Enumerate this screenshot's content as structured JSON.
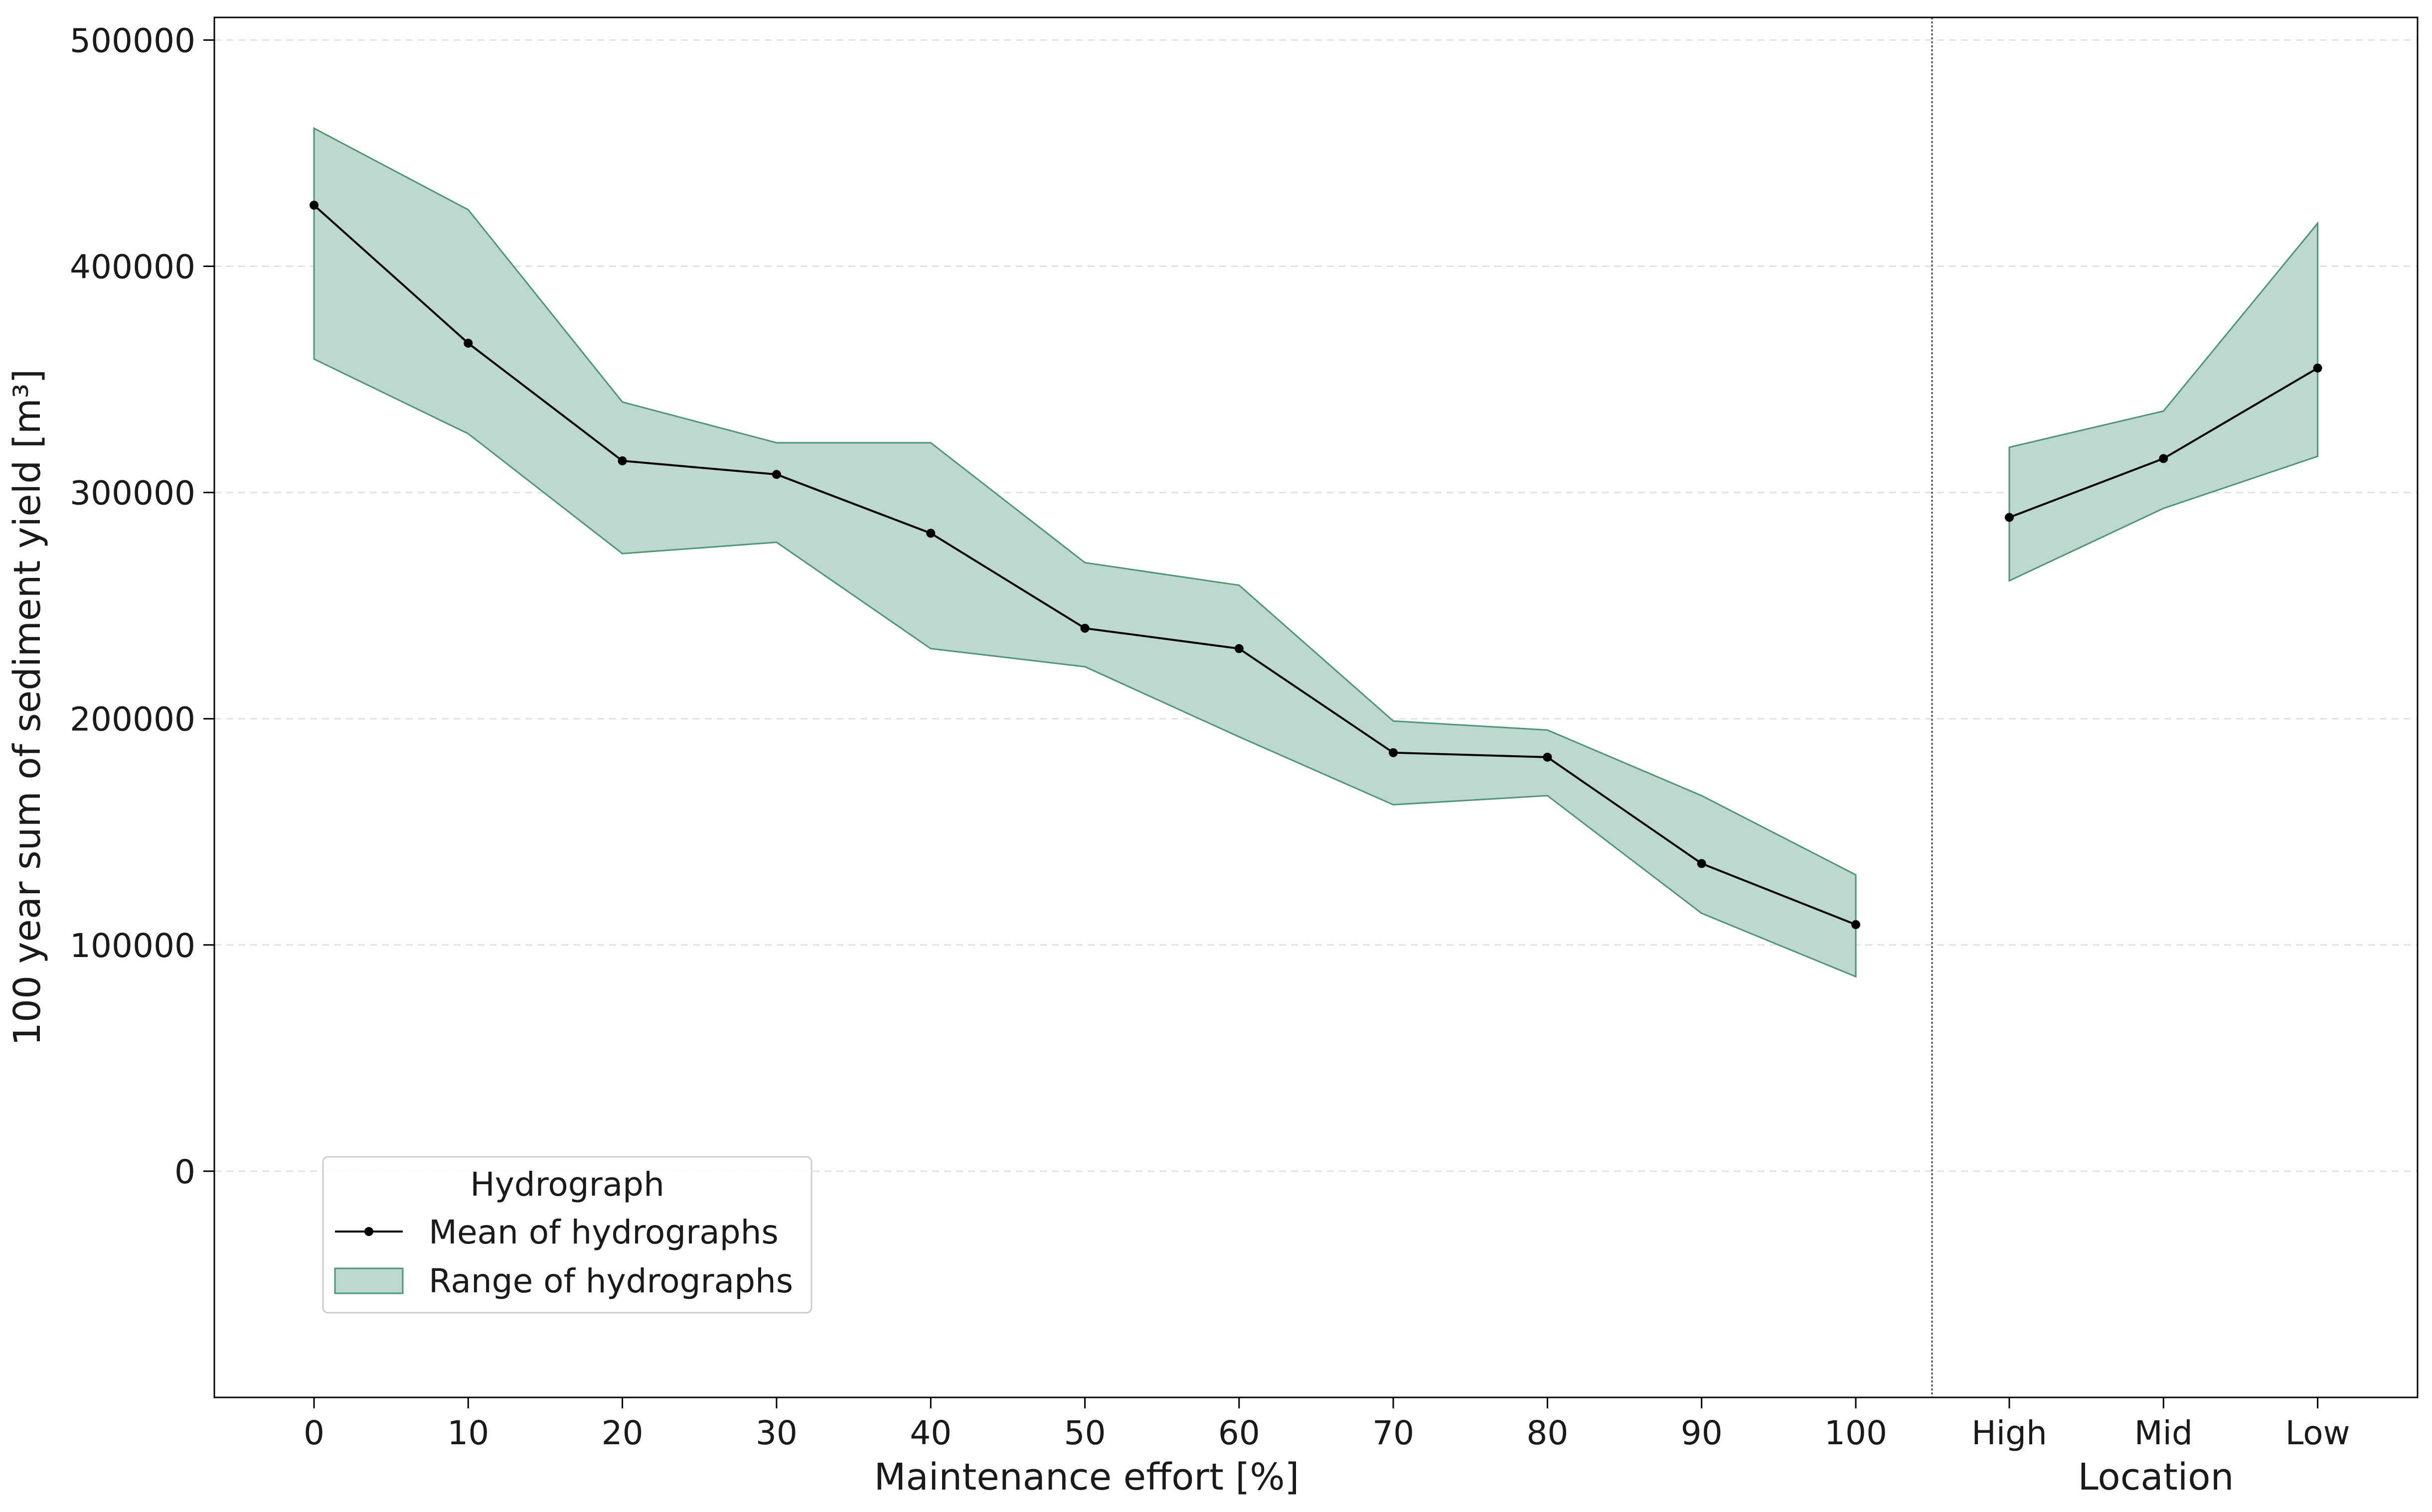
{
  "chart_data": {
    "type": "line",
    "ylabel": "100 year sum of sediment yield [m³]",
    "ylim": [
      -100000,
      510000
    ],
    "yticks": [
      0,
      100000,
      200000,
      300000,
      400000,
      500000
    ],
    "ytick_labels": [
      "0",
      "100000",
      "200000",
      "300000",
      "400000",
      "500000"
    ],
    "grid": "horizontal dashed",
    "panels": [
      {
        "xlabel": "Maintenance effort [%]",
        "categories": [
          "0",
          "10",
          "20",
          "30",
          "40",
          "50",
          "60",
          "70",
          "80",
          "90",
          "100"
        ],
        "series": [
          {
            "name": "Mean of hydrographs",
            "values": [
              427000,
              366000,
              314000,
              308000,
              282000,
              240000,
              231000,
              185000,
              183000,
              136000,
              109000
            ]
          }
        ],
        "range": {
          "name": "Range of hydrographs",
          "lower": [
            359000,
            326000,
            273000,
            278000,
            231000,
            223000,
            192000,
            162000,
            166000,
            114000,
            86000
          ],
          "upper": [
            461000,
            425000,
            340000,
            322000,
            322000,
            269000,
            259000,
            199000,
            195000,
            166000,
            131000
          ]
        }
      },
      {
        "xlabel": "Location",
        "categories": [
          "High",
          "Mid",
          "Low"
        ],
        "series": [
          {
            "name": "Mean of hydrographs",
            "values": [
              289000,
              315000,
              355000
            ]
          }
        ],
        "range": {
          "name": "Range of hydrographs",
          "lower": [
            261000,
            293000,
            316000
          ],
          "upper": [
            320000,
            336000,
            419000
          ]
        }
      }
    ],
    "legend": {
      "title": "Hydrograph",
      "placement": "lower-left",
      "entries": [
        "Mean of hydrographs",
        "Range of hydrographs"
      ]
    },
    "colors": {
      "line": "#000000",
      "range_fill": "#bdd8cf",
      "range_edge": "#4d9576",
      "grid": "#e2e2e2",
      "divider": "#444444"
    }
  }
}
